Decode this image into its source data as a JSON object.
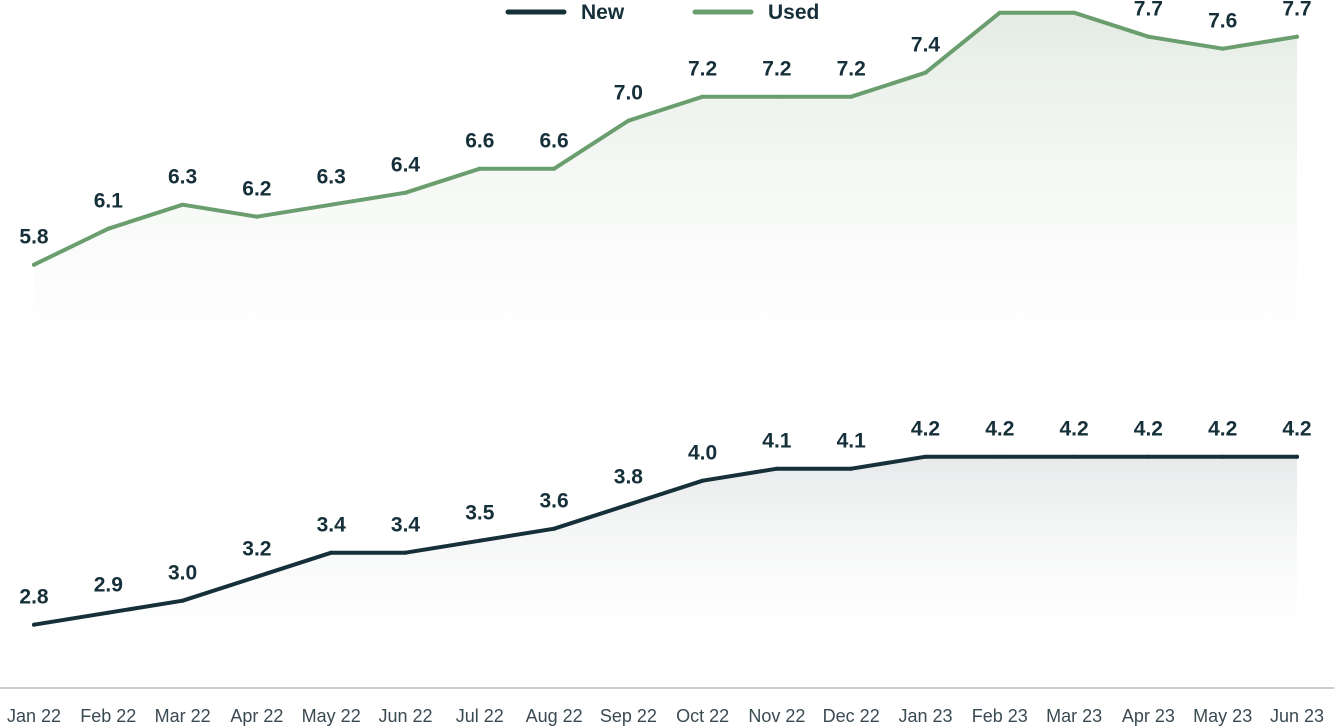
{
  "chart_data": {
    "type": "line",
    "categories": [
      "Jan 22",
      "Feb 22",
      "Mar 22",
      "Apr 22",
      "May 22",
      "Jun 22",
      "Jul 22",
      "Aug 22",
      "Sep 22",
      "Oct 22",
      "Nov 22",
      "Dec 22",
      "Jan 23",
      "Feb 23",
      "Mar 23",
      "Apr 23",
      "May 23",
      "Jun 23"
    ],
    "series": [
      {
        "name": "New",
        "color": "#16303a",
        "values": [
          2.8,
          2.9,
          3.0,
          3.2,
          3.4,
          3.4,
          3.5,
          3.6,
          3.8,
          4.0,
          4.1,
          4.1,
          4.2,
          4.2,
          4.2,
          4.2,
          4.2,
          4.2
        ]
      },
      {
        "name": "Used",
        "color": "#6b9e6f",
        "values": [
          5.8,
          6.1,
          6.3,
          6.2,
          6.3,
          6.4,
          6.6,
          6.6,
          7.0,
          7.2,
          7.2,
          7.2,
          7.4,
          7.9,
          7.9,
          7.7,
          7.6,
          7.7
        ]
      }
    ],
    "data_labels": true,
    "legend": "top-center",
    "grid": false,
    "area_fill": true
  }
}
